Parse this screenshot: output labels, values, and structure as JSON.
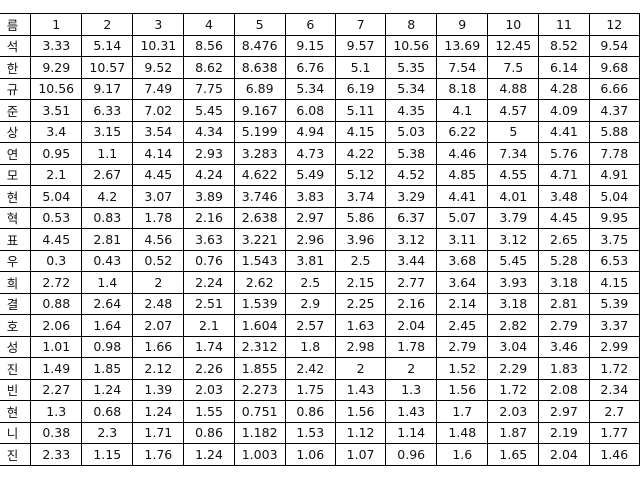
{
  "table": {
    "header": [
      "름",
      "1",
      "2",
      "3",
      "4",
      "5",
      "6",
      "7",
      "8",
      "9",
      "10",
      "11",
      "12"
    ],
    "rows": [
      [
        "석",
        3.33,
        5.14,
        10.31,
        8.56,
        8.476,
        9.15,
        9.57,
        10.56,
        13.69,
        12.45,
        8.52,
        9.54
      ],
      [
        "한",
        9.29,
        10.57,
        9.52,
        8.62,
        8.638,
        6.76,
        5.1,
        5.35,
        7.54,
        7.5,
        6.14,
        9.68
      ],
      [
        "규",
        10.56,
        9.17,
        7.49,
        7.75,
        6.89,
        5.34,
        6.19,
        5.34,
        8.18,
        4.88,
        4.28,
        6.66
      ],
      [
        "준",
        3.51,
        6.33,
        7.02,
        5.45,
        9.167,
        6.08,
        5.11,
        4.35,
        4.1,
        4.57,
        4.09,
        4.37
      ],
      [
        "상",
        3.4,
        3.15,
        3.54,
        4.34,
        5.199,
        4.94,
        4.15,
        5.03,
        6.22,
        5,
        4.41,
        5.88
      ],
      [
        "연",
        0.95,
        1.1,
        4.14,
        2.93,
        3.283,
        4.73,
        4.22,
        5.38,
        4.46,
        7.34,
        5.76,
        7.78
      ],
      [
        "모",
        2.1,
        2.67,
        4.45,
        4.24,
        4.622,
        5.49,
        5.12,
        4.52,
        4.85,
        4.55,
        4.71,
        4.91
      ],
      [
        "현",
        5.04,
        4.2,
        3.07,
        3.89,
        3.746,
        3.83,
        3.74,
        3.29,
        4.41,
        4.01,
        3.48,
        5.04
      ],
      [
        "혁",
        0.53,
        0.83,
        1.78,
        2.16,
        2.638,
        2.97,
        5.86,
        6.37,
        5.07,
        3.79,
        4.45,
        9.95
      ],
      [
        "표",
        4.45,
        2.81,
        4.56,
        3.63,
        3.221,
        2.96,
        3.96,
        3.12,
        3.11,
        3.12,
        2.65,
        3.75
      ],
      [
        "우",
        0.3,
        0.43,
        0.52,
        0.76,
        1.543,
        3.81,
        2.5,
        3.44,
        3.68,
        5.45,
        5.28,
        6.53
      ],
      [
        "희",
        2.72,
        1.4,
        2,
        2.24,
        2.62,
        2.5,
        2.15,
        2.77,
        3.64,
        3.93,
        3.18,
        4.15
      ],
      [
        "결",
        0.88,
        2.64,
        2.48,
        2.51,
        1.539,
        2.9,
        2.25,
        2.16,
        2.14,
        3.18,
        2.81,
        5.39
      ],
      [
        "호",
        2.06,
        1.64,
        2.07,
        2.1,
        1.604,
        2.57,
        1.63,
        2.04,
        2.45,
        2.82,
        2.79,
        3.37
      ],
      [
        "성",
        1.01,
        0.98,
        1.66,
        1.74,
        2.312,
        1.8,
        2.98,
        1.78,
        2.79,
        3.04,
        3.46,
        2.99
      ],
      [
        "진",
        1.49,
        1.85,
        2.12,
        2.26,
        1.855,
        2.42,
        2,
        2,
        1.52,
        2.29,
        1.83,
        1.72
      ],
      [
        "빈",
        2.27,
        1.24,
        1.39,
        2.03,
        2.273,
        1.75,
        1.43,
        1.3,
        1.56,
        1.72,
        2.08,
        2.34
      ],
      [
        "현",
        1.3,
        0.68,
        1.24,
        1.55,
        0.751,
        0.86,
        1.56,
        1.43,
        1.7,
        2.03,
        2.97,
        2.7
      ],
      [
        "니",
        0.38,
        2.3,
        1.71,
        0.86,
        1.182,
        1.53,
        1.12,
        1.14,
        1.48,
        1.87,
        2.19,
        1.77
      ],
      [
        "진",
        2.33,
        1.15,
        1.76,
        1.24,
        1.003,
        1.06,
        1.07,
        0.96,
        1.6,
        1.65,
        2.04,
        1.46
      ]
    ]
  }
}
